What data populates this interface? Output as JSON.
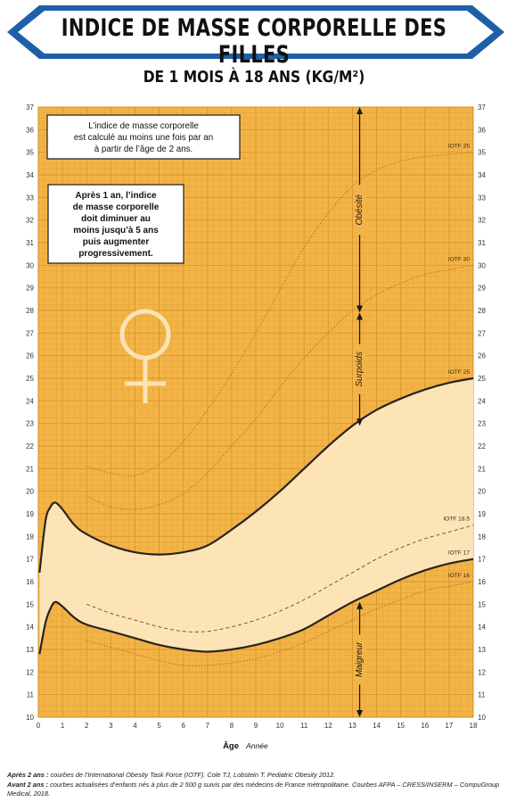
{
  "title": "INDICE DE MASSE CORPORELLE DES FILLES",
  "subtitle": "DE 1 MOIS À 18 ANS (KG/M²)",
  "colors": {
    "banner_blue": "#1f5fa8",
    "banner_fill": "#ffffff",
    "plot_bg": "#f3b447",
    "grid_line": "#d8922a",
    "band_fill": "#fde8c0",
    "curve": "#2a2320",
    "dotted": "#a06a2a"
  },
  "boxes": {
    "info1": [
      "L’indice de masse corporelle",
      "est calculé au moins une fois par an",
      "à partir de l’âge de 2 ans."
    ],
    "info2": [
      "Après 1 an, l’indice",
      "de masse corporelle",
      "doit diminuer au",
      "moins jusqu’à 5 ans",
      "puis augmenter",
      "progressivement."
    ]
  },
  "symbol": "female-symbol",
  "footer": {
    "line1_bold": "Après 2 ans :",
    "line1": " courbes de l’International Obesity Task Force (IOTF). Cole TJ, Lobstein T. Pediatric Obesity 2012.",
    "line2_bold": "Avant 2 ans :",
    "line2": " courbes actualisées d’enfants nés à plus de 2 500 g suivis par des médecins de France métropolitaine. Courbes AFPA – CRESS/INSERM – CompuGroup Medical, 2018."
  },
  "chart_data": {
    "type": "line",
    "xlabel": "Âge",
    "xlabel_unit": "Année",
    "xlim": [
      0,
      18
    ],
    "ylim": [
      10,
      37
    ],
    "x_ticks": [
      0,
      1,
      2,
      3,
      4,
      5,
      6,
      7,
      8,
      9,
      10,
      11,
      12,
      13,
      14,
      15,
      16,
      17,
      18
    ],
    "y_ticks": [
      10,
      11,
      12,
      13,
      14,
      15,
      16,
      17,
      18,
      19,
      20,
      21,
      22,
      23,
      24,
      25,
      26,
      27,
      28,
      29,
      30,
      31,
      32,
      33,
      34,
      35,
      36,
      37
    ],
    "series": [
      {
        "name": "IOTF 35",
        "style": "dotted",
        "x": [
          2,
          3,
          4,
          5,
          6,
          7,
          8,
          9,
          10,
          11,
          12,
          13,
          14,
          15,
          16,
          17,
          18
        ],
        "y": [
          21.1,
          20.8,
          20.7,
          21.2,
          22.2,
          23.6,
          25.2,
          27.0,
          28.9,
          30.8,
          32.3,
          33.5,
          34.2,
          34.6,
          34.8,
          34.9,
          35.0
        ]
      },
      {
        "name": "IOTF 30",
        "style": "dotted",
        "x": [
          2,
          3,
          4,
          5,
          6,
          7,
          8,
          9,
          10,
          11,
          12,
          13,
          14,
          15,
          16,
          17,
          18
        ],
        "y": [
          19.8,
          19.3,
          19.2,
          19.4,
          19.9,
          20.8,
          22.0,
          23.2,
          24.6,
          25.9,
          27.0,
          28.0,
          28.7,
          29.2,
          29.6,
          29.8,
          30.0
        ]
      },
      {
        "name": "IOTF 25",
        "style": "solid",
        "x": [
          0.05,
          0.3,
          0.5,
          0.7,
          1,
          1.5,
          2,
          3,
          4,
          5,
          6,
          7,
          8,
          9,
          10,
          11,
          12,
          13,
          14,
          15,
          16,
          17,
          18
        ],
        "y": [
          16.4,
          18.7,
          19.3,
          19.5,
          19.2,
          18.5,
          18.1,
          17.6,
          17.3,
          17.2,
          17.3,
          17.6,
          18.3,
          19.1,
          20.0,
          21.0,
          22.0,
          22.9,
          23.6,
          24.1,
          24.5,
          24.8,
          25.0
        ]
      },
      {
        "name": "IOTF 18.5",
        "style": "dashed",
        "x": [
          2,
          3,
          4,
          5,
          6,
          7,
          8,
          9,
          10,
          11,
          12,
          13,
          14,
          15,
          16,
          17,
          18
        ],
        "y": [
          15.0,
          14.6,
          14.3,
          14.0,
          13.8,
          13.8,
          14.0,
          14.3,
          14.7,
          15.2,
          15.8,
          16.4,
          17.0,
          17.5,
          17.9,
          18.2,
          18.5
        ]
      },
      {
        "name": "IOTF 17",
        "style": "solid",
        "x": [
          0.05,
          0.3,
          0.5,
          0.7,
          1,
          1.5,
          2,
          3,
          4,
          5,
          6,
          7,
          8,
          9,
          10,
          11,
          12,
          13,
          14,
          15,
          16,
          17,
          18
        ],
        "y": [
          12.8,
          14.2,
          14.8,
          15.1,
          14.9,
          14.4,
          14.1,
          13.8,
          13.5,
          13.2,
          13.0,
          12.9,
          13.0,
          13.2,
          13.5,
          13.9,
          14.5,
          15.1,
          15.6,
          16.1,
          16.5,
          16.8,
          17.0
        ]
      },
      {
        "name": "IOTF 16",
        "style": "dotted",
        "x": [
          2,
          3,
          4,
          5,
          6,
          7,
          8,
          9,
          10,
          11,
          12,
          13,
          14,
          15,
          16,
          17,
          18
        ],
        "y": [
          13.4,
          13.1,
          12.8,
          12.5,
          12.3,
          12.3,
          12.4,
          12.6,
          12.9,
          13.3,
          13.8,
          14.3,
          14.8,
          15.2,
          15.6,
          15.8,
          16.0
        ]
      }
    ],
    "zones": [
      {
        "label": "Obésité",
        "from": 27.9,
        "to": 37
      },
      {
        "label": "Surpoids",
        "from": 22.9,
        "to": 27.9
      },
      {
        "label": "Maigreur",
        "from": 10,
        "to": 15.1
      }
    ],
    "zone_x": 13.3,
    "grid": true
  }
}
